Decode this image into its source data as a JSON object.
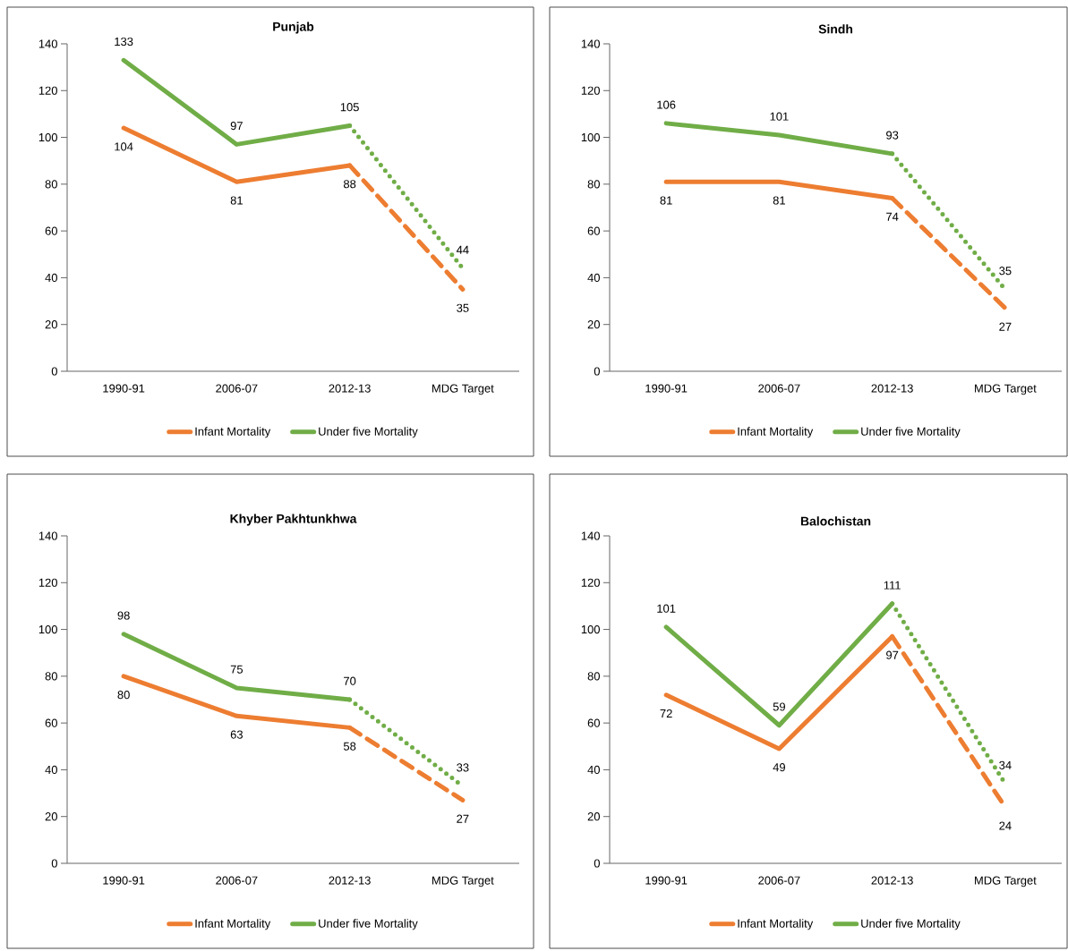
{
  "chart_data": [
    {
      "type": "line",
      "title": "Punjab",
      "categories": [
        "1990-91",
        "2006-07",
        "2012-13",
        "MDG Target"
      ],
      "ylim": [
        0,
        140
      ],
      "yticks": [
        0,
        20,
        40,
        60,
        80,
        100,
        120,
        140
      ],
      "legend": "bottom",
      "line_style": "solid",
      "series": [
        {
          "name": "Infant Mortality",
          "color": "#ed7d31",
          "values": [
            104,
            81,
            88,
            null
          ],
          "value_labels": [
            "104",
            "81",
            "88",
            null
          ]
        },
        {
          "name": "Under five Mortality",
          "color": "#70ad47",
          "values": [
            133,
            97,
            105,
            null
          ],
          "value_labels": [
            "133",
            "97",
            "105",
            null
          ]
        },
        {
          "color": "#ed7d31",
          "line_style": "dashed",
          "values": [
            null,
            null,
            88,
            35
          ],
          "value_labels": [
            null,
            null,
            null,
            "35"
          ]
        },
        {
          "color": "#70ad47",
          "line_style": "dotted",
          "values": [
            null,
            null,
            105,
            44
          ],
          "value_labels": [
            null,
            null,
            null,
            "44"
          ]
        }
      ]
    },
    {
      "type": "line",
      "title": "Sindh",
      "categories": [
        "1990-91",
        "2006-07",
        "2012-13",
        "MDG Target"
      ],
      "ylim": [
        0,
        140
      ],
      "yticks": [
        0,
        20,
        40,
        60,
        80,
        100,
        120,
        140
      ],
      "legend": "bottom",
      "line_style": "solid",
      "series": [
        {
          "name": "Infant Mortality",
          "color": "#ed7d31",
          "values": [
            81,
            81,
            74,
            null
          ],
          "value_labels": [
            "81",
            "81",
            "74",
            null
          ]
        },
        {
          "name": "Under five Mortality",
          "color": "#70ad47",
          "values": [
            106,
            101,
            93,
            null
          ],
          "value_labels": [
            "106",
            "101",
            "93",
            null
          ]
        },
        {
          "color": "#ed7d31",
          "line_style": "dashed",
          "values": [
            null,
            null,
            74,
            27
          ],
          "value_labels": [
            null,
            null,
            null,
            "27"
          ]
        },
        {
          "color": "#70ad47",
          "line_style": "dotted",
          "values": [
            null,
            null,
            93,
            35
          ],
          "value_labels": [
            null,
            null,
            null,
            "35"
          ]
        }
      ]
    },
    {
      "type": "line",
      "title": "Khyber Pakhtunkhwa",
      "categories": [
        "1990-91",
        "2006-07",
        "2012-13",
        "MDG Target"
      ],
      "ylim": [
        0,
        140
      ],
      "yticks": [
        0,
        20,
        40,
        60,
        80,
        100,
        120,
        140
      ],
      "legend": "bottom",
      "line_style": "solid",
      "series": [
        {
          "name": "Infant Mortality",
          "color": "#ed7d31",
          "values": [
            80,
            63,
            58,
            null
          ],
          "value_labels": [
            "80",
            "63",
            "58",
            null
          ]
        },
        {
          "name": "Under five Mortality",
          "color": "#70ad47",
          "values": [
            98,
            75,
            70,
            null
          ],
          "value_labels": [
            "98",
            "75",
            "70",
            null
          ]
        },
        {
          "color": "#ed7d31",
          "line_style": "dashed",
          "values": [
            null,
            null,
            58,
            27
          ],
          "value_labels": [
            null,
            null,
            null,
            "27"
          ]
        },
        {
          "color": "#70ad47",
          "line_style": "dotted",
          "values": [
            null,
            null,
            70,
            33
          ],
          "value_labels": [
            null,
            null,
            null,
            "33"
          ]
        }
      ]
    },
    {
      "type": "line",
      "title": "Balochistan",
      "categories": [
        "1990-91",
        "2006-07",
        "2012-13",
        "MDG Target"
      ],
      "ylim": [
        0,
        140
      ],
      "yticks": [
        0,
        20,
        40,
        60,
        80,
        100,
        120,
        140
      ],
      "legend": "bottom",
      "line_style": "solid",
      "series": [
        {
          "name": "Infant Mortality",
          "color": "#ed7d31",
          "values": [
            72,
            49,
            97,
            null
          ],
          "value_labels": [
            "72",
            "49",
            "97",
            null
          ]
        },
        {
          "name": "Under five Mortality",
          "color": "#70ad47",
          "values": [
            101,
            59,
            111,
            null
          ],
          "value_labels": [
            "101",
            "59",
            "111",
            null
          ]
        },
        {
          "color": "#ed7d31",
          "line_style": "dashed",
          "values": [
            null,
            null,
            97,
            24
          ],
          "value_labels": [
            null,
            null,
            null,
            "24"
          ]
        },
        {
          "color": "#70ad47",
          "line_style": "dotted",
          "values": [
            null,
            null,
            111,
            34
          ],
          "value_labels": [
            null,
            null,
            null,
            "34"
          ]
        }
      ]
    }
  ]
}
